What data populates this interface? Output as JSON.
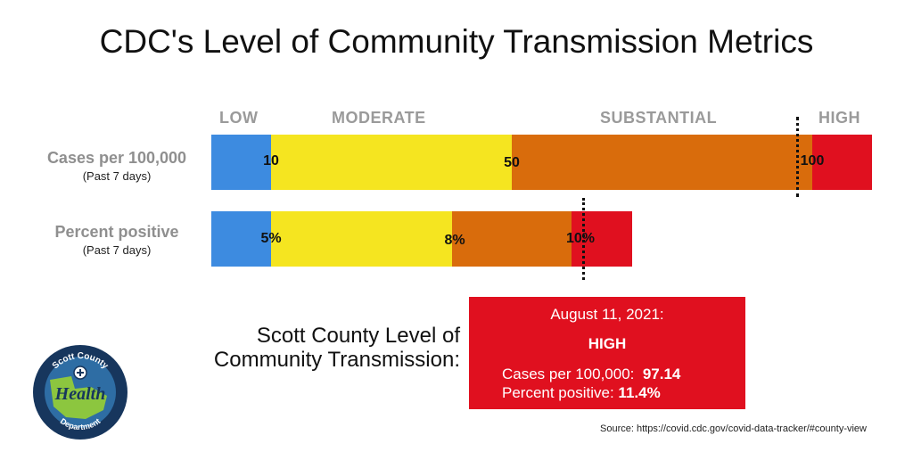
{
  "title": "CDC's Level of Community Transmission Metrics",
  "chart_data": {
    "type": "bar",
    "orientation": "horizontal-stacked",
    "categories": [
      "LOW",
      "MODERATE",
      "SUBSTANTIAL",
      "HIGH"
    ],
    "colors": {
      "low": "#3d8be0",
      "moderate": "#f5e520",
      "substantial": "#d96c0c",
      "high": "#e0101f"
    },
    "rows": [
      {
        "label": "Cases per 100,000",
        "sublabel": "(Past 7 days)",
        "thresholds": [
          10,
          50,
          100
        ],
        "threshold_labels": [
          "10",
          "50",
          "100"
        ],
        "county_value": 97.14
      },
      {
        "label": "Percent positive",
        "sublabel": "(Past 7 days)",
        "thresholds": [
          5,
          8,
          10
        ],
        "threshold_labels": [
          "5%",
          "8%",
          "10%"
        ],
        "county_value": 11.4
      }
    ]
  },
  "county": {
    "label_line1": "Scott County Level of",
    "label_line2": "Community Transmission:",
    "date": "August 11, 2021:",
    "level": "HIGH",
    "cases_label": "Cases per 100,000:",
    "cases_value": "97.14",
    "percent_label": "Percent positive:",
    "percent_value": "11.4%"
  },
  "source": "Source:  https://covid.cdc.gov/covid-data-tracker/#county-view",
  "logo": {
    "top_text": "Scott County",
    "center_text": "Health",
    "bottom_text": "Department",
    "colors": {
      "ring": "#17365d",
      "land": "#8cc63f",
      "water": "#2e6da4"
    }
  }
}
